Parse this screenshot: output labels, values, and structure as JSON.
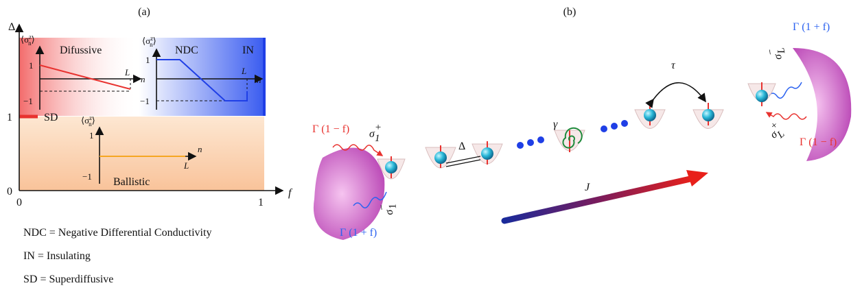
{
  "panel_a": {
    "label": "(a)",
    "y_axis": "Δ",
    "x_axis": "f",
    "x_ticks": [
      "0",
      "1"
    ],
    "y_ticks": [
      "0",
      "1"
    ],
    "regions": {
      "diffusive": "Difussive",
      "ndc": "NDC",
      "insulating": "IN",
      "superdiffusive": "SD",
      "ballistic": "Ballistic"
    },
    "insets": [
      {
        "y_label": {
          "open": "⟨σ",
          "sup": "z",
          "sub": "n",
          "close": "⟩"
        },
        "ticks": [
          "1",
          "−1"
        ],
        "length": "L",
        "axis": "n"
      },
      {
        "y_label": {
          "open": "⟨σ",
          "sup": "z",
          "sub": "n",
          "close": "⟩"
        },
        "ticks": [
          "1",
          "−1"
        ],
        "length": "L",
        "axis": "n"
      },
      {
        "y_label": {
          "open": "⟨σ",
          "sup": "z",
          "sub": "n",
          "close": "⟩"
        },
        "ticks": [
          "1",
          "−1"
        ],
        "length": "L",
        "axis": "n"
      }
    ],
    "legend": [
      "NDC = Negative Differential Conductivity",
      "IN = Insulating",
      "SD = Superdiffusive"
    ]
  },
  "panel_b": {
    "label": "(b)",
    "left_bath": {
      "rate_in": "Γ (1 − f)",
      "rate_out": "Γ (1 + f)",
      "sigma_plus": {
        "symbol": "σ",
        "sub": "1",
        "sup": "+"
      },
      "sigma_minus": {
        "symbol": "σ",
        "sub": "1",
        "sup": "−"
      }
    },
    "right_bath": {
      "rate_out": "Γ (1 + f)",
      "rate_in": "Γ (1 − f)",
      "sigma_minus": {
        "symbol": "σ",
        "sub": "L",
        "sup": "−"
      },
      "sigma_plus": {
        "symbol": "σ",
        "sub": "L",
        "sup": "+"
      }
    },
    "anisotropy": "Δ",
    "dephasing": "γ",
    "hopping": "τ",
    "current": "J"
  }
}
